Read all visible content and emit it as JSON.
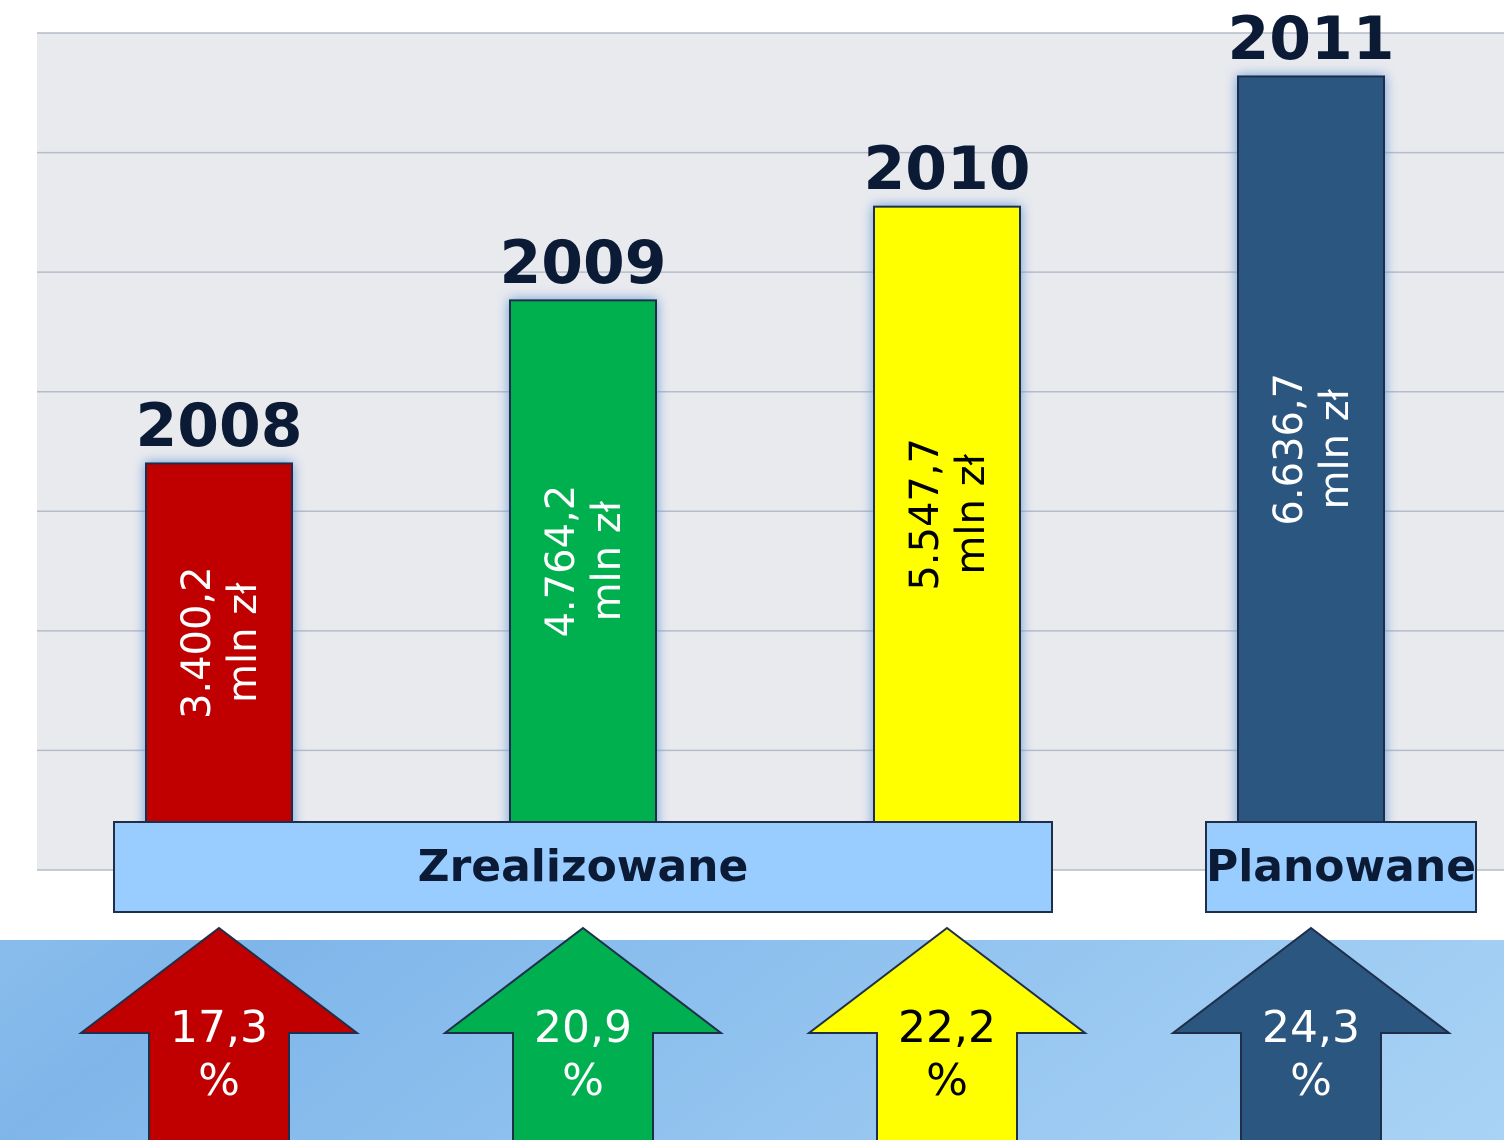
{
  "chart_data": {
    "type": "bar",
    "categories": [
      "2008",
      "2009",
      "2010",
      "2011"
    ],
    "values": [
      3400.2,
      4764.2,
      5547.7,
      6636.7
    ],
    "value_labels": [
      "3.400,2",
      "4.764,2",
      "5.547,7",
      "6.636,7"
    ],
    "unit": "mln zł",
    "colors": [
      "#c00000",
      "#00b050",
      "#ffff00",
      "#2a5680"
    ],
    "label_colors": [
      "#ffffff",
      "#ffffff",
      "#000000",
      "#ffffff"
    ],
    "ylim": [
      0,
      7000
    ],
    "yticks": [
      0,
      1000,
      2000,
      3000,
      4000,
      5000,
      6000,
      7000
    ],
    "grid": true,
    "groups": [
      {
        "label": "Zrealizowane",
        "members": [
          "2008",
          "2009",
          "2010"
        ]
      },
      {
        "label": "Planowane",
        "members": [
          "2011"
        ]
      }
    ],
    "growth": {
      "values": [
        17.3,
        20.9,
        22.2,
        24.3
      ],
      "value_labels": [
        "17,3",
        "20,9",
        "22,2",
        "24,3"
      ],
      "unit": "%"
    }
  }
}
